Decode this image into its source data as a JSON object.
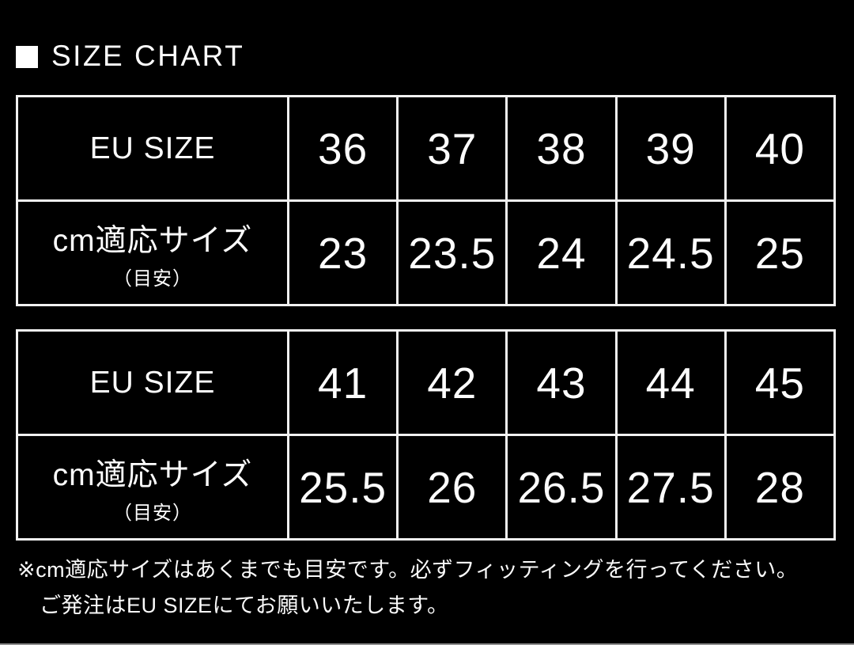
{
  "page": {
    "background": "#000000",
    "text_color": "#ffffff",
    "table_border_color": "#f2f2f2",
    "bottom_line_color": "#8f8f8f"
  },
  "title": {
    "marker_icon": "white-square",
    "text": "SIZE CHART"
  },
  "tables": [
    {
      "rows": [
        {
          "label": "EU SIZE",
          "values": [
            "36",
            "37",
            "38",
            "39",
            "40"
          ]
        },
        {
          "label": "cm適応サイズ",
          "sublabel": "（目安）",
          "values": [
            "23",
            "23.5",
            "24",
            "24.5",
            "25"
          ]
        }
      ]
    },
    {
      "rows": [
        {
          "label": "EU SIZE",
          "values": [
            "41",
            "42",
            "43",
            "44",
            "45"
          ]
        },
        {
          "label": "cm適応サイズ",
          "sublabel": "（目安）",
          "values": [
            "25.5",
            "26",
            "26.5",
            "27.5",
            "28"
          ]
        }
      ]
    }
  ],
  "notes": {
    "line1": "※cm適応サイズはあくまでも目安です。必ずフィッティングを行ってください。",
    "line2": "ご発注はEU SIZEにてお願いいたします。"
  },
  "chart_data": {
    "type": "table",
    "title": "SIZE CHART",
    "tables": [
      {
        "header_label": "EU SIZE",
        "row_label": "cm適応サイズ（目安）",
        "eu_size": [
          36,
          37,
          38,
          39,
          40
        ],
        "cm_size": [
          23,
          23.5,
          24,
          24.5,
          25
        ]
      },
      {
        "header_label": "EU SIZE",
        "row_label": "cm適応サイズ（目安）",
        "eu_size": [
          41,
          42,
          43,
          44,
          45
        ],
        "cm_size": [
          25.5,
          26,
          26.5,
          27.5,
          28
        ]
      }
    ]
  }
}
